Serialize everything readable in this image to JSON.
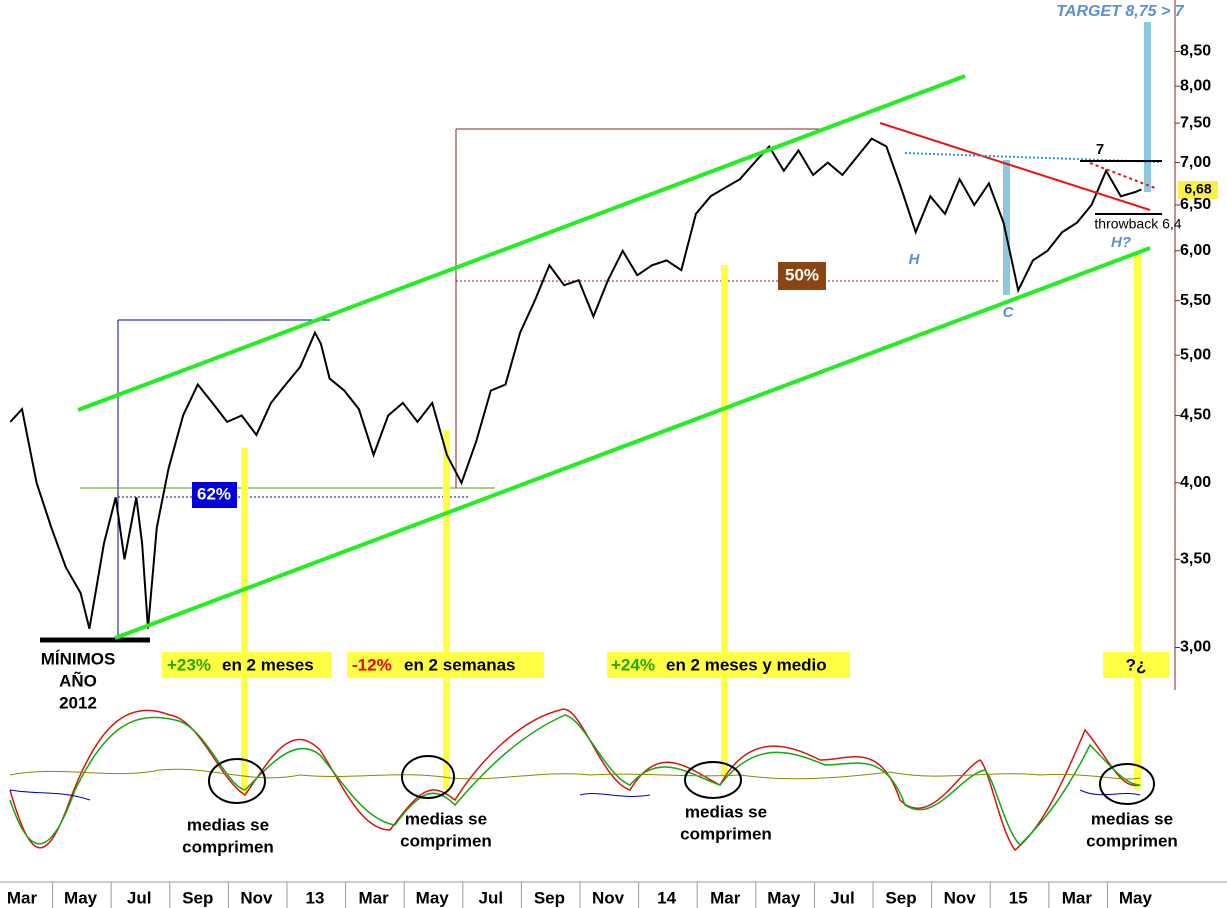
{
  "chart_data": {
    "type": "line",
    "log_scale": true,
    "color": "#000000",
    "x": [
      -0.4,
      0,
      0.5,
      1,
      1.5,
      2,
      2.3,
      2.8,
      3.2,
      3.5,
      3.9,
      4.1,
      4.3,
      4.6,
      5,
      5.5,
      6,
      6.5,
      7,
      7.5,
      8,
      8.5,
      9,
      9.5,
      10,
      10.2,
      10.5,
      11,
      11.5,
      12,
      12.5,
      13,
      13.5,
      14,
      14.5,
      15,
      15.5,
      16,
      16.5,
      17,
      17.5,
      18,
      18.5,
      19,
      19.5,
      20,
      20.5,
      21,
      21.5,
      22,
      22.5,
      23,
      23.5,
      24,
      24.5,
      25,
      25.5,
      26,
      26.5,
      27,
      27.5,
      28,
      29,
      29.5,
      30,
      30.5,
      31,
      31.5,
      32,
      32.5,
      33,
      33.5,
      34,
      34.5,
      35,
      35.5,
      36,
      36.5,
      37,
      37.5,
      38,
      38.2
    ],
    "values": [
      4.45,
      4.55,
      4.0,
      3.7,
      3.45,
      3.3,
      3.1,
      3.6,
      3.9,
      3.5,
      3.9,
      3.6,
      3.1,
      3.7,
      4.1,
      4.5,
      4.75,
      4.6,
      4.45,
      4.5,
      4.35,
      4.6,
      4.75,
      4.9,
      5.2,
      5.1,
      4.8,
      4.7,
      4.55,
      4.2,
      4.5,
      4.6,
      4.45,
      4.6,
      4.2,
      4.0,
      4.3,
      4.7,
      4.75,
      5.2,
      5.5,
      5.85,
      5.65,
      5.7,
      5.35,
      5.7,
      6.0,
      5.75,
      5.85,
      5.9,
      5.8,
      6.4,
      6.6,
      6.7,
      6.8,
      7.0,
      7.2,
      6.9,
      7.15,
      6.85,
      7.0,
      6.85,
      7.3,
      7.2,
      6.7,
      6.2,
      6.6,
      6.4,
      6.8,
      6.5,
      6.75,
      6.3,
      5.6,
      5.9,
      6.0,
      6.2,
      6.3,
      6.5,
      6.9,
      6.6,
      6.65,
      6.68
    ],
    "xlim": [
      -0.75,
      39.35
    ],
    "ylim": [
      2.8,
      9.3
    ],
    "xticks": [
      {
        "value": 0,
        "label": "Mar"
      },
      {
        "value": 2,
        "label": "May"
      },
      {
        "value": 4,
        "label": "Jul"
      },
      {
        "value": 6,
        "label": "Sep"
      },
      {
        "value": 8,
        "label": "Nov"
      },
      {
        "value": 10,
        "label": "13"
      },
      {
        "value": 12,
        "label": "Mar"
      },
      {
        "value": 14,
        "label": "May"
      },
      {
        "value": 16,
        "label": "Jul"
      },
      {
        "value": 18,
        "label": "Sep"
      },
      {
        "value": 20,
        "label": "Nov"
      },
      {
        "value": 22,
        "label": "14"
      },
      {
        "value": 24,
        "label": "Mar"
      },
      {
        "value": 26,
        "label": "May"
      },
      {
        "value": 28,
        "label": "Jul"
      },
      {
        "value": 30,
        "label": "Sep"
      },
      {
        "value": 32,
        "label": "Nov"
      },
      {
        "value": 34,
        "label": "15"
      },
      {
        "value": 36,
        "label": "Mar"
      },
      {
        "value": 38,
        "label": "May"
      }
    ],
    "yticks": [
      {
        "value": 3,
        "label": "3,00"
      },
      {
        "value": 3.5,
        "label": "3,50"
      },
      {
        "value": 4,
        "label": "4,00"
      },
      {
        "value": 4.5,
        "label": "4,50"
      },
      {
        "value": 5,
        "label": "5,00"
      },
      {
        "value": 5.5,
        "label": "5,50"
      },
      {
        "value": 6,
        "label": "6,00"
      },
      {
        "value": 6.5,
        "label": "6,50"
      },
      {
        "value": 7,
        "label": "7,00"
      },
      {
        "value": 7.5,
        "label": "7,50"
      },
      {
        "value": 8,
        "label": "8,00"
      },
      {
        "value": 8.5,
        "label": "8,50"
      }
    ],
    "annotations": {
      "target": "TARGET 8,75 > 7",
      "last_price": "6,68",
      "fib62": "62%",
      "fib50": "50%",
      "h": "H",
      "c": "C",
      "h_question": "H?",
      "seven": "7",
      "throwback": "throwback 6,4",
      "minimos": [
        "MÍNIMOS",
        "AÑO",
        "2012"
      ],
      "move1": [
        "+23%",
        "en 2 meses"
      ],
      "move2": [
        "-12%",
        "en 2 semanas"
      ],
      "move3": [
        "+24%",
        "en 2 meses y medio"
      ],
      "move4": "?¿",
      "medias": [
        [
          "medias se",
          "comprimen"
        ],
        [
          "medias se",
          "comprimen"
        ],
        [
          "medias se",
          "comprimen"
        ],
        [
          "medias se",
          "comprimen"
        ]
      ]
    }
  }
}
